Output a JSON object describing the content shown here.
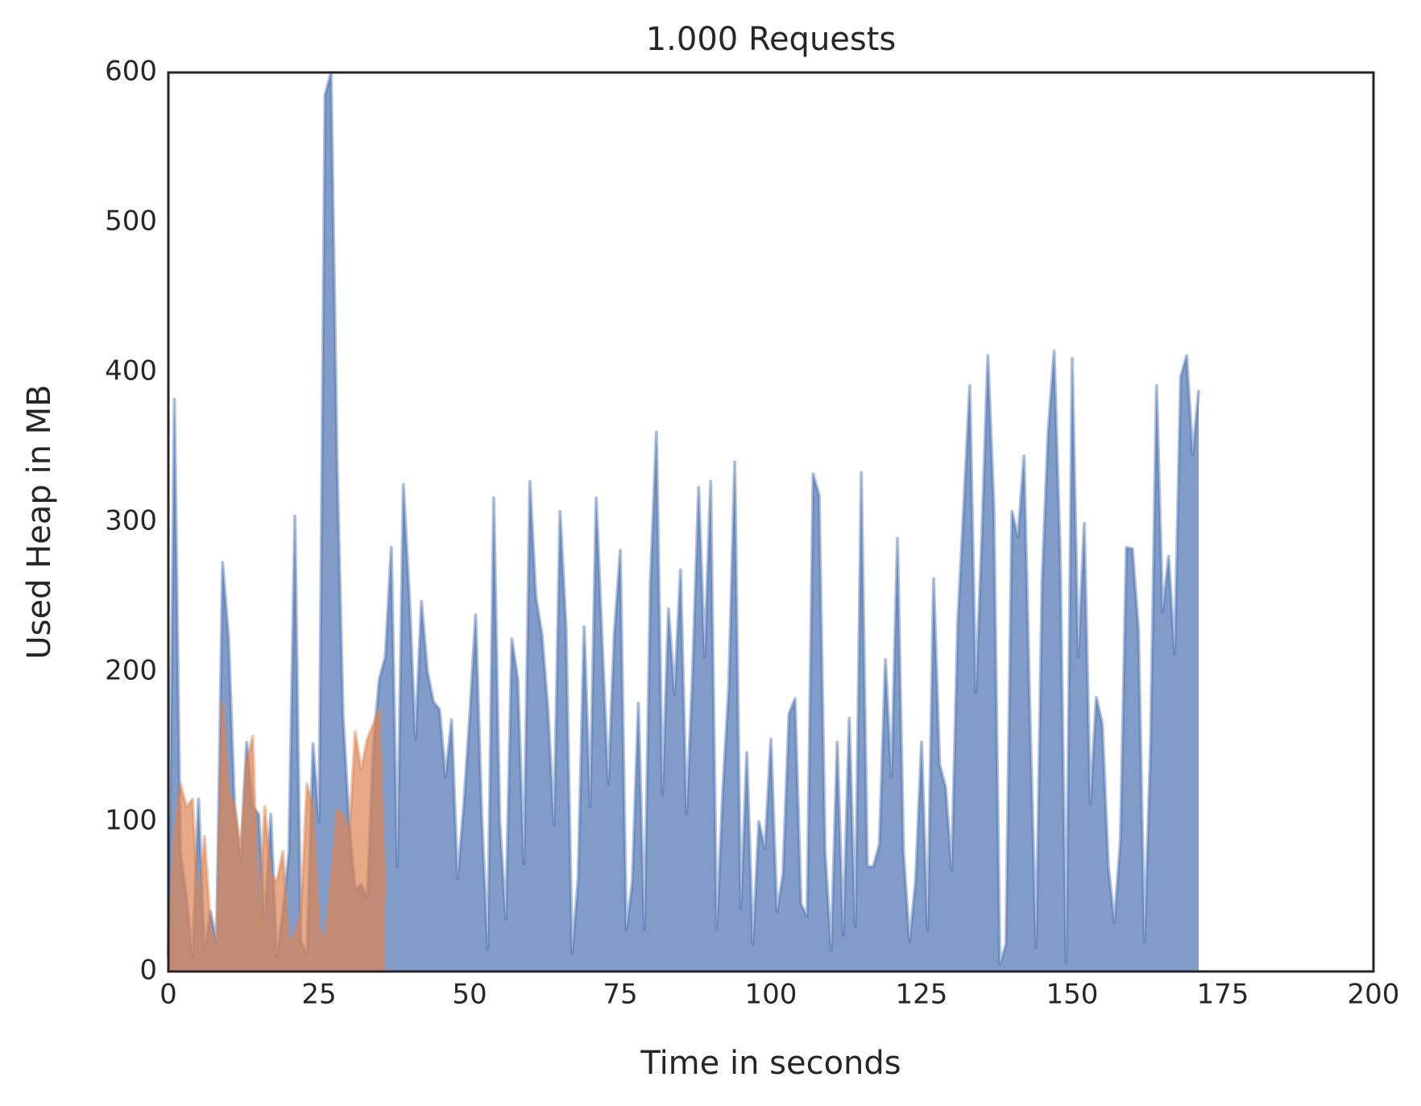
{
  "chart_data": {
    "type": "area",
    "title": "1.000 Requests",
    "x_label": "Time in seconds",
    "y_label": "Used Heap in MB",
    "xlim": [
      0,
      200
    ],
    "xticks": [
      0,
      25,
      50,
      75,
      100,
      125,
      150,
      175,
      200
    ],
    "ylim": [
      0,
      600
    ],
    "yticks": [
      0,
      100,
      200,
      300,
      400,
      500,
      600
    ],
    "grid": false,
    "series": [
      {
        "color": "#4c72b0",
        "x": [
          0,
          1,
          2,
          3,
          4,
          5,
          6,
          7,
          8,
          9,
          10,
          11,
          12,
          13,
          14,
          15,
          16,
          17,
          18,
          19,
          20,
          21,
          22,
          23,
          24,
          25,
          26,
          27,
          28,
          29,
          30,
          31,
          32,
          33,
          34,
          35,
          36,
          37,
          38,
          39,
          40,
          41,
          42,
          43,
          44,
          45,
          46,
          47,
          48,
          49,
          50,
          51,
          52,
          53,
          54,
          55,
          56,
          57,
          58,
          59,
          60,
          61,
          62,
          63,
          64,
          65,
          66,
          67,
          68,
          69,
          70,
          71,
          72,
          73,
          74,
          75,
          76,
          77,
          78,
          79,
          80,
          81,
          82,
          83,
          84,
          85,
          86,
          87,
          88,
          89,
          90,
          91,
          92,
          93,
          94,
          95,
          96,
          97,
          98,
          99,
          100,
          101,
          102,
          103,
          104,
          105,
          106,
          107,
          108,
          109,
          110,
          111,
          112,
          113,
          114,
          115,
          116,
          117,
          118,
          119,
          120,
          121,
          122,
          123,
          124,
          125,
          126,
          127,
          128,
          129,
          130,
          131,
          132,
          133,
          134,
          135,
          136,
          137,
          138,
          139,
          140,
          141,
          142,
          143,
          144,
          145,
          146,
          147,
          148,
          149,
          150,
          151,
          152,
          153,
          154,
          155,
          156,
          157,
          158,
          159,
          160,
          161,
          162,
          163,
          164,
          165,
          166,
          167,
          168,
          169,
          170,
          171
        ],
        "values": [
          10,
          382,
          80,
          50,
          10,
          115,
          15,
          40,
          20,
          273,
          222,
          110,
          75,
          153,
          110,
          105,
          35,
          105,
          10,
          40,
          80,
          304,
          20,
          12,
          152,
          100,
          585,
          600,
          340,
          170,
          100,
          55,
          58,
          50,
          150,
          195,
          210,
          283,
          70,
          325,
          250,
          155,
          247,
          200,
          180,
          175,
          130,
          168,
          62,
          110,
          170,
          238,
          105,
          15,
          316,
          100,
          35,
          222,
          195,
          72,
          327,
          250,
          225,
          175,
          98,
          307,
          230,
          12,
          62,
          230,
          110,
          316,
          220,
          125,
          225,
          281,
          28,
          60,
          179,
          28,
          260,
          360,
          118,
          242,
          185,
          268,
          105,
          200,
          323,
          210,
          327,
          28,
          120,
          190,
          340,
          42,
          146,
          18,
          100,
          82,
          155,
          40,
          65,
          172,
          182,
          45,
          37,
          332,
          318,
          80,
          14,
          153,
          24,
          169,
          30,
          333,
          70,
          70,
          85,
          208,
          130,
          289,
          80,
          20,
          60,
          153,
          27,
          262,
          138,
          123,
          68,
          233,
          310,
          391,
          186,
          290,
          411,
          310,
          5,
          18,
          307,
          290,
          344,
          170,
          16,
          260,
          360,
          414,
          280,
          6,
          409,
          210,
          299,
          112,
          183,
          165,
          70,
          33,
          88,
          283,
          282,
          228,
          20,
          150,
          391,
          240,
          277,
          212,
          397,
          411,
          345,
          388
        ]
      },
      {
        "color": "#dd8452",
        "x": [
          0,
          1,
          2,
          3,
          4,
          5,
          6,
          7,
          8,
          9,
          10,
          11,
          12,
          13,
          14,
          15,
          16,
          17,
          18,
          19,
          20,
          21,
          22,
          23,
          24,
          25,
          26,
          27,
          28,
          29,
          30,
          31,
          32,
          33,
          34,
          35,
          36
        ],
        "values": [
          10,
          90,
          125,
          110,
          115,
          40,
          90,
          30,
          15,
          180,
          120,
          110,
          80,
          140,
          157,
          30,
          110,
          65,
          60,
          80,
          20,
          25,
          40,
          125,
          110,
          30,
          20,
          60,
          108,
          105,
          90,
          160,
          135,
          155,
          165,
          175,
          48
        ]
      }
    ]
  }
}
